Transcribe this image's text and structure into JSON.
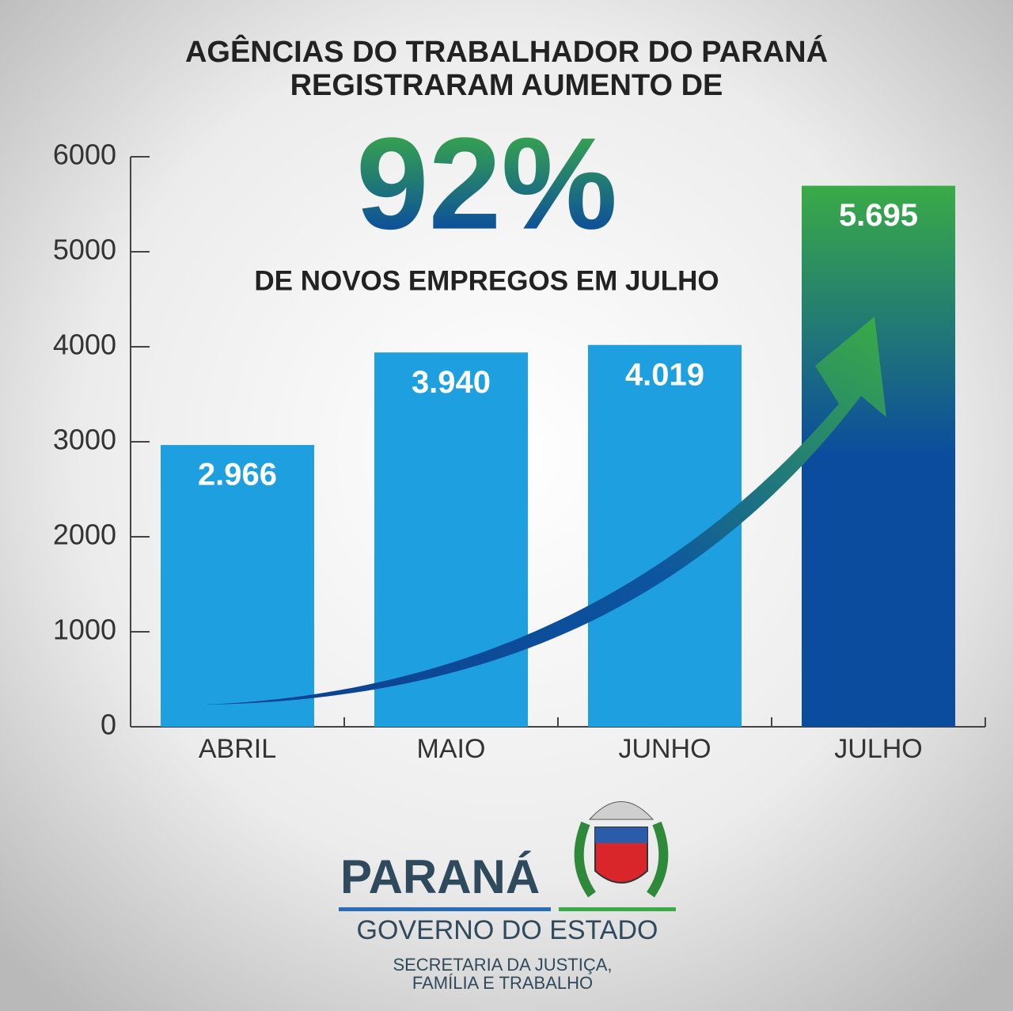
{
  "chart_data": {
    "type": "bar",
    "title": "AGÊNCIAS DO TRABALHADOR DO PARANÁ",
    "subtitle": "REGISTRARAM AUMENTO DE",
    "headline": "92%",
    "headline_caption": "DE NOVOS EMPREGOS EM JULHO",
    "categories": [
      "ABRIL",
      "MAIO",
      "JUNHO",
      "JULHO"
    ],
    "values": [
      2966,
      3940,
      4019,
      5695
    ],
    "value_labels": [
      "2.966",
      "3.940",
      "4.019",
      "5.695"
    ],
    "colors": [
      "#1d9fe0",
      "#1d9fe0",
      "#1d9fe0",
      "#0b4c9e"
    ],
    "highlight_color": "#3aab47",
    "ylim": [
      0,
      6000
    ],
    "yticks": [
      0,
      1000,
      2000,
      3000,
      4000,
      5000,
      6000
    ]
  },
  "footer": {
    "brand": "PARANÁ",
    "government": "GOVERNO DO ESTADO",
    "department_lines": [
      "SECRETARIA DA JUSTIÇA,",
      "FAMÍLIA E TRABALHO"
    ]
  }
}
